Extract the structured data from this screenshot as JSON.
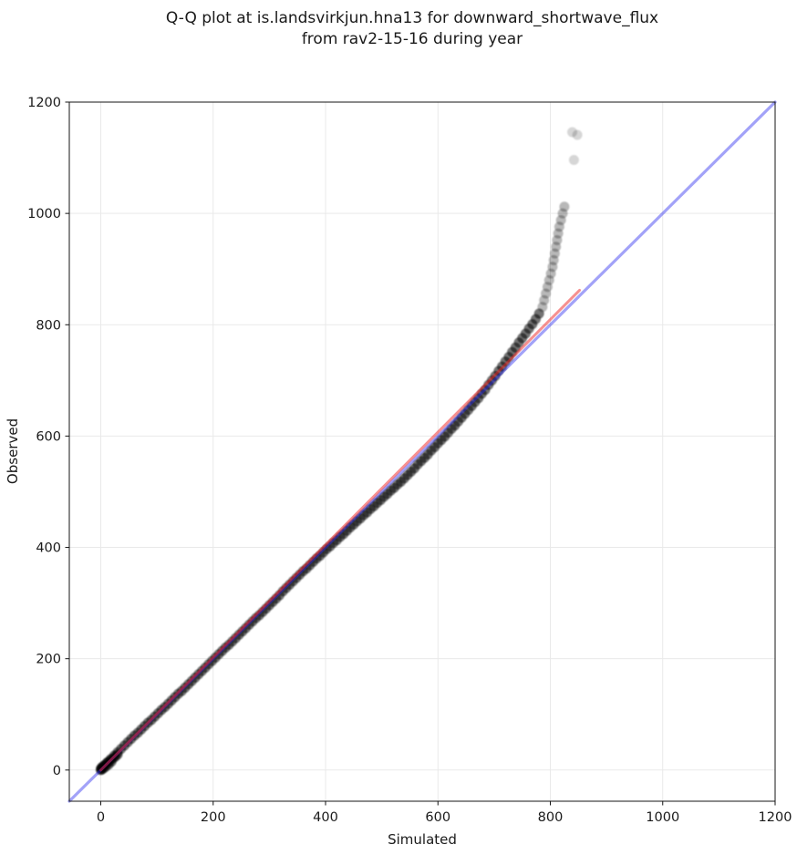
{
  "title": {
    "line1": "Q-Q plot at is.landsvirkjun.hna13 for downward_shortwave_flux",
    "line2": "from rav2-15-16 during year"
  },
  "chart_data": {
    "type": "scatter",
    "title": "Q-Q plot at is.landsvirkjun.hna13 for downward_shortwave_flux from rav2-15-16 during year",
    "xlabel": "Simulated",
    "ylabel": "Observed",
    "xlim": [
      -56,
      1200
    ],
    "ylim": [
      -56,
      1200
    ],
    "xticks": [
      0,
      200,
      400,
      600,
      800,
      1000,
      1200
    ],
    "yticks": [
      0,
      200,
      400,
      600,
      800,
      1000,
      1200
    ],
    "grid": true,
    "legend": "none",
    "background": "#ffffff",
    "identity_line": {
      "label": "identity y=x",
      "color": "#2222ee",
      "opacity": 0.42,
      "width": 3.2,
      "x": [
        -56,
        1200
      ],
      "y": [
        -56,
        1200
      ]
    },
    "fit_line": {
      "label": "quantile fit",
      "color": "#ee2222",
      "opacity": 0.5,
      "width": 3,
      "x": [
        0,
        852
      ],
      "y": [
        0,
        862
      ]
    },
    "scatter": {
      "label": "quantile points",
      "color": "#000000",
      "marker_radius": 5.5,
      "band_alpha": 0.55,
      "chain_alpha": 0.28,
      "outlier_alpha": 0.16,
      "band": [
        [
          0,
          2
        ],
        [
          6,
          8
        ],
        [
          12,
          14
        ],
        [
          18,
          20
        ],
        [
          24,
          26
        ],
        [
          30,
          32
        ],
        [
          36,
          38
        ],
        [
          42,
          44
        ],
        [
          48,
          50
        ],
        [
          54,
          56
        ],
        [
          60,
          62
        ],
        [
          66,
          67
        ],
        [
          72,
          73
        ],
        [
          78,
          79
        ],
        [
          84,
          85
        ],
        [
          90,
          90
        ],
        [
          96,
          96
        ],
        [
          102,
          102
        ],
        [
          108,
          108
        ],
        [
          114,
          113
        ],
        [
          120,
          119
        ],
        [
          126,
          125
        ],
        [
          132,
          131
        ],
        [
          138,
          137
        ],
        [
          144,
          142
        ],
        [
          150,
          148
        ],
        [
          156,
          154
        ],
        [
          162,
          160
        ],
        [
          168,
          166
        ],
        [
          174,
          172
        ],
        [
          180,
          178
        ],
        [
          186,
          184
        ],
        [
          192,
          190
        ],
        [
          198,
          196
        ],
        [
          204,
          202
        ],
        [
          210,
          208
        ],
        [
          216,
          214
        ],
        [
          222,
          220
        ],
        [
          228,
          225
        ],
        [
          234,
          231
        ],
        [
          240,
          237
        ],
        [
          246,
          243
        ],
        [
          252,
          249
        ],
        [
          258,
          255
        ],
        [
          264,
          261
        ],
        [
          270,
          267
        ],
        [
          276,
          273
        ],
        [
          282,
          278
        ],
        [
          288,
          284
        ],
        [
          294,
          290
        ],
        [
          300,
          296
        ],
        [
          306,
          302
        ],
        [
          312,
          308
        ],
        [
          318,
          314
        ],
        [
          324,
          321
        ],
        [
          330,
          327
        ],
        [
          336,
          333
        ],
        [
          342,
          339
        ],
        [
          348,
          345
        ],
        [
          354,
          351
        ],
        [
          360,
          357
        ],
        [
          366,
          362
        ],
        [
          372,
          368
        ],
        [
          378,
          374
        ],
        [
          384,
          380
        ],
        [
          390,
          385
        ],
        [
          396,
          391
        ],
        [
          402,
          397
        ],
        [
          408,
          402
        ],
        [
          414,
          408
        ],
        [
          420,
          413
        ],
        [
          426,
          419
        ],
        [
          432,
          424
        ],
        [
          438,
          430
        ],
        [
          444,
          436
        ],
        [
          450,
          441
        ],
        [
          456,
          447
        ],
        [
          462,
          452
        ],
        [
          468,
          458
        ],
        [
          474,
          463
        ],
        [
          480,
          469
        ],
        [
          486,
          474
        ],
        [
          492,
          480
        ],
        [
          498,
          485
        ],
        [
          504,
          491
        ],
        [
          510,
          496
        ],
        [
          516,
          502
        ],
        [
          522,
          507
        ],
        [
          528,
          513
        ],
        [
          534,
          518
        ],
        [
          540,
          524
        ],
        [
          546,
          530
        ],
        [
          552,
          536
        ],
        [
          558,
          542
        ],
        [
          564,
          549
        ],
        [
          570,
          555
        ],
        [
          576,
          561
        ],
        [
          582,
          567
        ],
        [
          588,
          574
        ],
        [
          594,
          580
        ],
        [
          600,
          587
        ],
        [
          606,
          593
        ],
        [
          612,
          599
        ],
        [
          618,
          606
        ],
        [
          624,
          613
        ],
        [
          630,
          619
        ],
        [
          636,
          626
        ],
        [
          642,
          633
        ],
        [
          648,
          640
        ],
        [
          654,
          647
        ],
        [
          660,
          654
        ],
        [
          666,
          661
        ],
        [
          672,
          668
        ],
        [
          678,
          676
        ],
        [
          684,
          683
        ],
        [
          690,
          692
        ],
        [
          696,
          700
        ],
        [
          702,
          708
        ],
        [
          708,
          717
        ],
        [
          714,
          725
        ],
        [
          720,
          734
        ],
        [
          726,
          742
        ],
        [
          732,
          751
        ],
        [
          738,
          759
        ],
        [
          744,
          768
        ],
        [
          750,
          776
        ],
        [
          756,
          784
        ],
        [
          762,
          793
        ],
        [
          768,
          801
        ],
        [
          774,
          810
        ],
        [
          780,
          820
        ],
        [
          0,
          0
        ],
        [
          1,
          4
        ],
        [
          2,
          1
        ],
        [
          3,
          6
        ],
        [
          5,
          3
        ],
        [
          7,
          9
        ],
        [
          9,
          6
        ],
        [
          11,
          13
        ],
        [
          14,
          10
        ],
        [
          16,
          17
        ],
        [
          19,
          15
        ],
        [
          22,
          21
        ],
        [
          26,
          24
        ],
        [
          30,
          28
        ]
      ],
      "tail_chain": [
        [
          786,
          832
        ],
        [
          789,
          844
        ],
        [
          792,
          856
        ],
        [
          795,
          868
        ],
        [
          798,
          880
        ],
        [
          801,
          892
        ],
        [
          804,
          904
        ],
        [
          806,
          916
        ],
        [
          808,
          928
        ],
        [
          810,
          940
        ],
        [
          812,
          952
        ],
        [
          814,
          964
        ],
        [
          816,
          976
        ],
        [
          819,
          988
        ],
        [
          822,
          1000
        ],
        [
          825,
          1012
        ]
      ],
      "outliers": [
        [
          842,
          1096
        ],
        [
          839,
          1146
        ],
        [
          848,
          1141
        ]
      ]
    }
  }
}
